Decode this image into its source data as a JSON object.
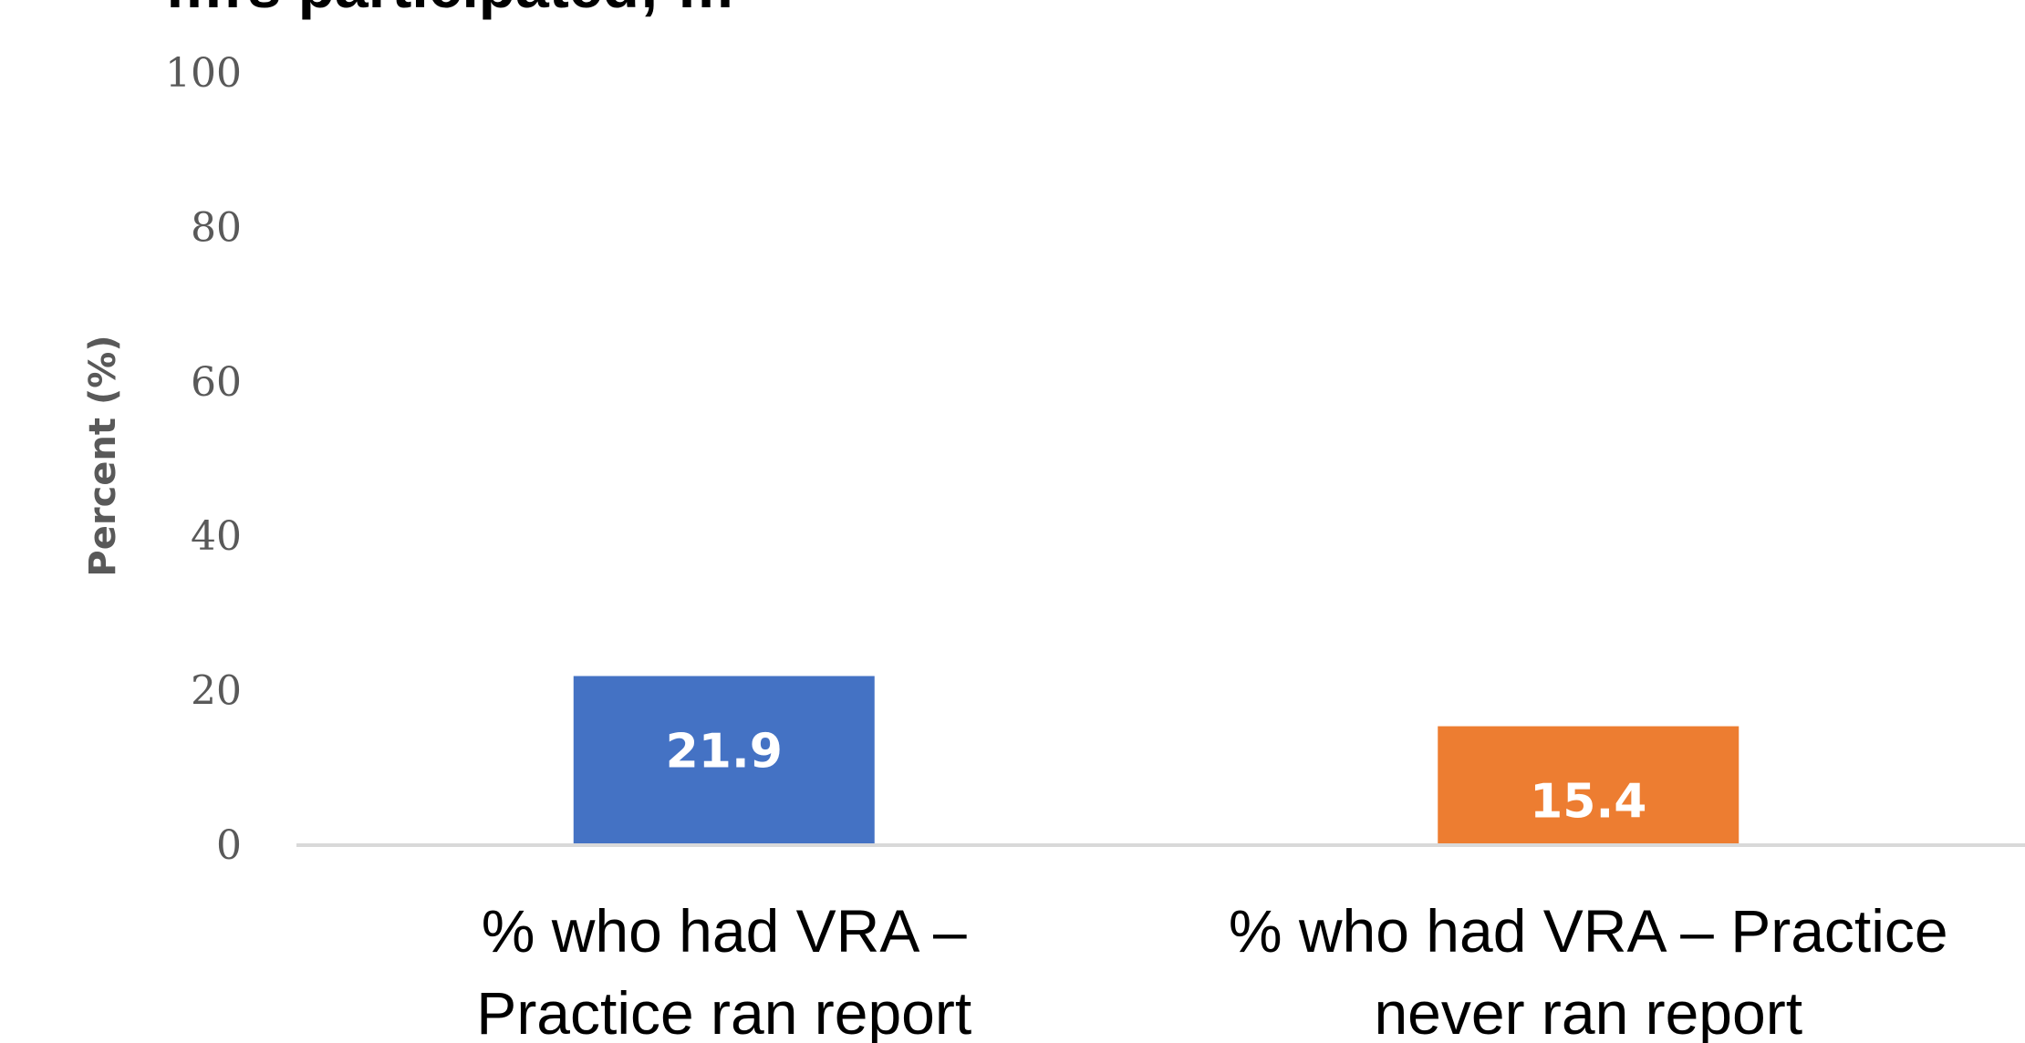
{
  "chart_data": {
    "type": "bar",
    "title_fragment": "…rs participated; …",
    "ylabel": "Percent (%)",
    "xlabel": "",
    "ylim": [
      0,
      100
    ],
    "yticks": [
      0,
      20,
      40,
      60,
      80,
      100
    ],
    "grid": false,
    "categories": [
      [
        "% who had VRA –",
        "Practice ran report"
      ],
      [
        "% who had VRA – Practice",
        "never ran report"
      ]
    ],
    "values": [
      21.9,
      15.4
    ],
    "data_labels": [
      "21.9",
      "15.4"
    ],
    "colors": [
      "#4472C4",
      "#ED7D31"
    ],
    "axis_color": "#D9D9D9"
  }
}
